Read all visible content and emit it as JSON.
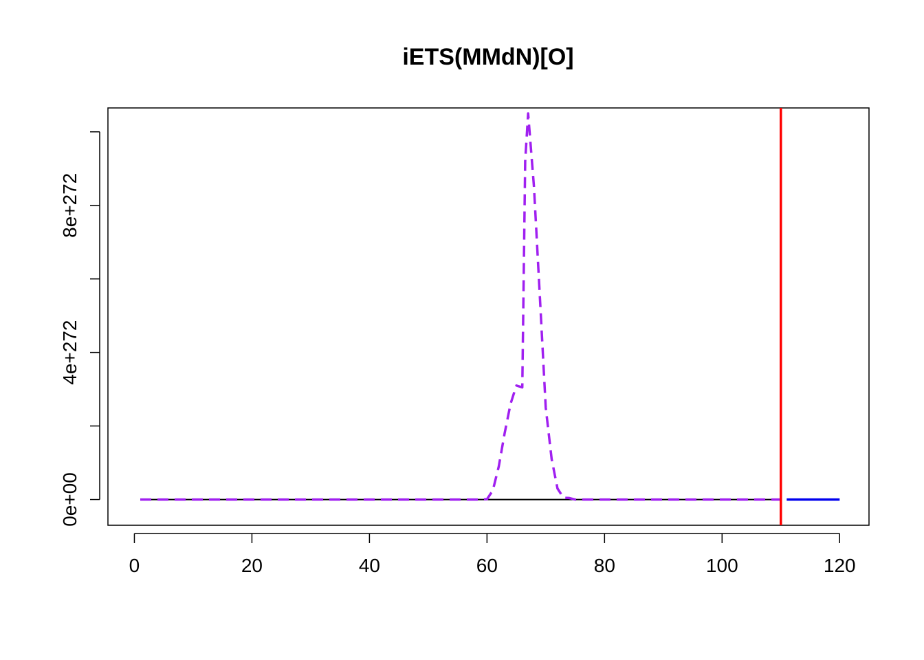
{
  "chart_data": {
    "type": "line",
    "title": "iETS(MMdN)[O]",
    "xlabel": "",
    "ylabel": "",
    "xlim": [
      -4.5,
      125
    ],
    "ylim": [
      -7e+271,
      1.065e+273
    ],
    "x_ticks": [
      0,
      20,
      40,
      60,
      80,
      100,
      120
    ],
    "x_tick_labels": [
      "0",
      "20",
      "40",
      "60",
      "80",
      "100",
      "120"
    ],
    "y_ticks": [
      0,
      2e+272,
      4e+272,
      6e+272,
      8e+272,
      1e+273
    ],
    "y_tick_labels": [
      "0e+00",
      "",
      "4e+272",
      "",
      "8e+272",
      ""
    ],
    "grid": false,
    "legend": "none",
    "series": [
      {
        "style": "solid",
        "color": "#000000",
        "x": [
          1,
          110
        ],
        "y": [
          0,
          0
        ]
      },
      {
        "style": "dashed",
        "color": "#A020F0",
        "x": [
          1,
          10,
          20,
          30,
          40,
          50,
          59,
          60,
          61,
          62,
          63,
          64,
          65,
          66,
          66.5,
          67,
          68,
          69,
          70,
          71,
          72,
          73,
          74,
          75,
          80,
          90,
          100,
          110
        ],
        "y": [
          0,
          0,
          0,
          0,
          0,
          0,
          0,
          1e+270,
          2.5e+271,
          9e+271,
          1.8e+272,
          2.6e+272,
          3.1e+272,
          3.05e+272,
          9.2e+272,
          1.05e+273,
          8.5e+272,
          5.5e+272,
          2.5e+272,
          1.1e+272,
          3e+271,
          5e+270,
          4e+270,
          0,
          0,
          0,
          0,
          0
        ]
      },
      {
        "style": "solid",
        "color": "#0000EE",
        "x": [
          111,
          120
        ],
        "y": [
          0,
          0
        ]
      }
    ],
    "vlines": [
      {
        "x": 110,
        "color": "#FF0000"
      }
    ]
  }
}
